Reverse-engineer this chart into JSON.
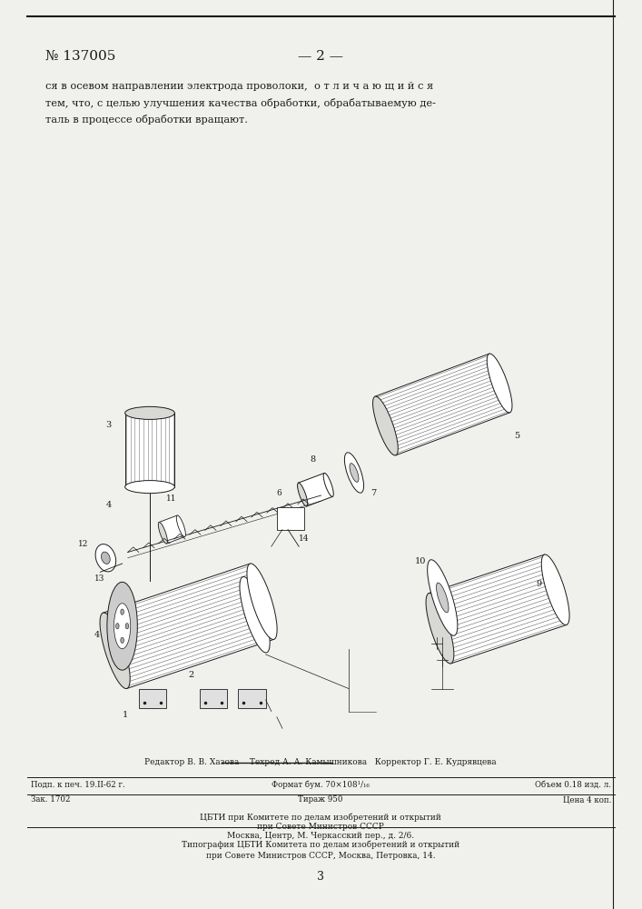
{
  "background_color": "#f0f0ec",
  "page_color": "#f0f0ec",
  "patent_number": "№ 137005",
  "page_number": "— 2 —",
  "text_line1": "ся в осевом направлении электрода проволоки,  о т л и ч а ю щ и й с я",
  "text_line2": "тем, что, с целью улучшения качества обработки, обрабатываемую де-",
  "text_line3": "таль в процессе обработки вращают.",
  "bottom_footer_editor": "Редактор В. В. Хазова    Техред А. А. Камышникова   Корректор Г. Е. Кудрявцева",
  "bottom_line1_left": "Подп. к печ. 19.II-62 г.",
  "bottom_line1_center": "Формат бум. 70×108¹/₁₆",
  "bottom_line1_right": "Объем 0.18 изд. л.",
  "bottom_line2_left": "Зак. 1702",
  "bottom_line2_center": "Тираж 950",
  "bottom_line2_right": "Цена 4 коп.",
  "bottom_center1": "ЦБТИ при Комитете по делам изобретений и открытий",
  "bottom_center2": "при Совете Министров СССР",
  "bottom_center3": "Москва, Центр, М. Черкасский пер., д. 2/6.",
  "bottom_center4": "Типография ЦБТИ Комитета по делам изобретений и открытий",
  "bottom_center5": "при Совете Министров СССР, Москва, Петровка, 14.",
  "page_num_bottom": "3",
  "font_color": "#1a1a1a",
  "line_color": "#1a1a1a"
}
